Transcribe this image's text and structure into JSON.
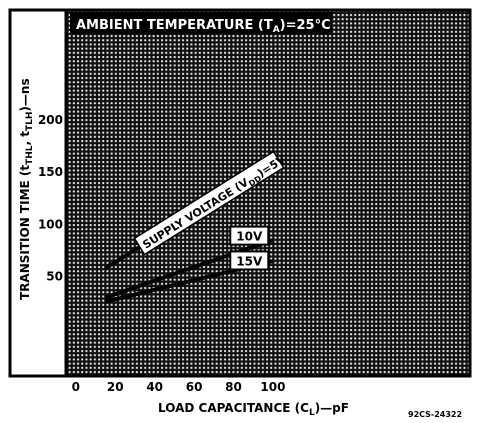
{
  "chart_data": {
    "type": "line",
    "title": "AMBIENT TEMPERATURE (T",
    "title_sub": "A",
    "title_tail": ")=25°C",
    "ylabel_parts": [
      "TRANSITION TIME (t",
      "THL",
      ", t",
      "TLH",
      ")—ns"
    ],
    "xlabel_parts": [
      "LOAD CAPACITANCE (C",
      "L",
      ")—pF"
    ],
    "x_ticks": [
      0,
      20,
      40,
      60,
      80,
      100
    ],
    "y_ticks": [
      50,
      100,
      150,
      200
    ],
    "xlim": [
      -5,
      200
    ],
    "ylim": [
      -45,
      305
    ],
    "grid": true,
    "figure_code": "92CS-24322",
    "series": [
      {
        "label_parts": [
          "SUPPLY VOLTAGE (V",
          "DD",
          ")=5V"
        ],
        "x": [
          15,
          100
        ],
        "y": [
          58,
          158
        ]
      },
      {
        "label": "10V",
        "x": [
          15,
          100
        ],
        "y": [
          30,
          85
        ]
      },
      {
        "label": "15V",
        "x": [
          15,
          100
        ],
        "y": [
          26,
          65
        ]
      }
    ]
  }
}
